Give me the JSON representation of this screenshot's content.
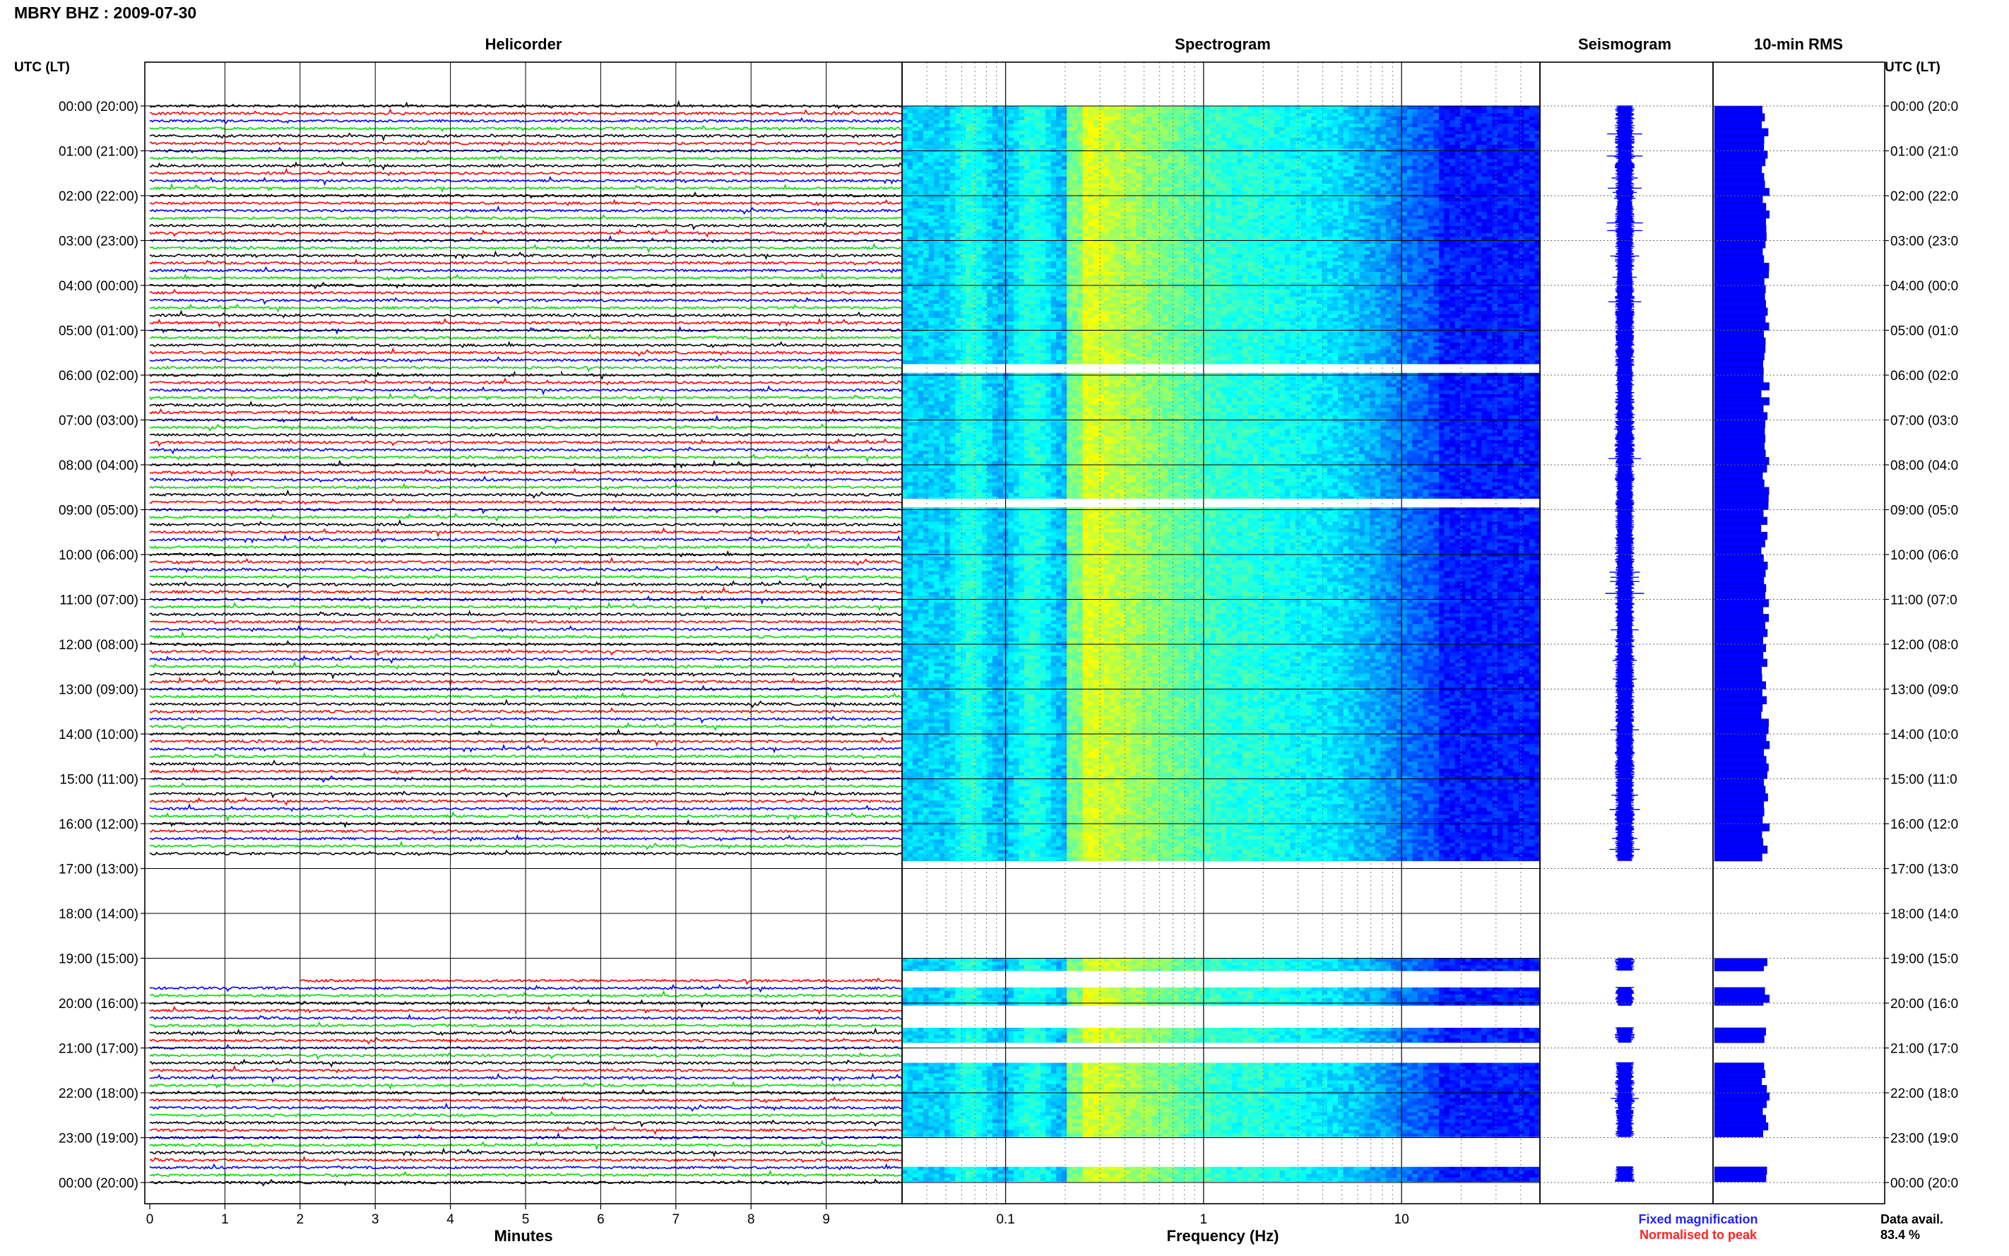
{
  "header": {
    "station_title": "MBRY BHZ : 2009-07-30",
    "utc_label": "UTC (LT)"
  },
  "panels": {
    "helicorder": "Helicorder",
    "spectrogram": "Spectrogram",
    "seismogram": "Seismogram",
    "rms": "10-min RMS"
  },
  "chart_data": {
    "type": "helicorder",
    "date": "2009-07-30",
    "hour_labels": [
      "00:00 (20:00)",
      "01:00 (21:00)",
      "02:00 (22:00)",
      "03:00 (23:00)",
      "04:00 (00:00)",
      "05:00 (01:00)",
      "06:00 (02:00)",
      "07:00 (03:00)",
      "08:00 (04:00)",
      "09:00 (05:00)",
      "10:00 (06:00)",
      "11:00 (07:00)",
      "12:00 (08:00)",
      "13:00 (09:00)",
      "14:00 (10:00)",
      "15:00 (11:00)",
      "16:00 (12:00)",
      "17:00 (13:00)",
      "18:00 (14:00)",
      "19:00 (15:00)",
      "20:00 (16:00)",
      "21:00 (17:00)",
      "22:00 (18:00)",
      "23:00 (19:00)",
      "00:00 (20:00)"
    ],
    "right_hour_labels": [
      "00:00 (20:0",
      "01:00 (21:0",
      "02:00 (22:0",
      "03:00 (23:0",
      "04:00 (00:0",
      "05:00 (01:0",
      "06:00 (02:0",
      "07:00 (03:0",
      "08:00 (04:0",
      "09:00 (05:0",
      "10:00 (06:0",
      "11:00 (07:0",
      "12:00 (08:0",
      "13:00 (09:0",
      "14:00 (10:0",
      "15:00 (11:0",
      "16:00 (12:0",
      "17:00 (13:0",
      "18:00 (14:0",
      "19:00 (15:0",
      "20:00 (16:0",
      "21:00 (17:0",
      "22:00 (18:0",
      "23:00 (19:0",
      "00:00 (20:0"
    ],
    "helicorder": {
      "xlabel": "Minutes",
      "x_ticks": [
        "0",
        "1",
        "2",
        "3",
        "4",
        "5",
        "6",
        "7",
        "8",
        "9"
      ],
      "xlim": [
        0,
        10
      ],
      "line_colors": [
        "#000000",
        "#ff0000",
        "#0000ff",
        "#00dd00"
      ],
      "traces_per_hour": 6,
      "minutes_per_trace": 10,
      "data_ranges": [
        {
          "start_minute": 0,
          "end_minute": 1010
        },
        {
          "start_minute": 1172,
          "end_minute": 1440
        }
      ]
    },
    "spectrogram": {
      "xlabel": "Frequency (Hz)",
      "x_scale": "log",
      "xlim": [
        0.03,
        50
      ],
      "x_ticks": [
        "0.1",
        "1",
        "10"
      ],
      "tick_values": [
        0.1,
        1,
        10
      ],
      "data_ranges_hours": [
        [
          0,
          5.75
        ],
        [
          5.95,
          8.75
        ],
        [
          8.95,
          16.83
        ],
        [
          19.0,
          19.28
        ],
        [
          19.65,
          20.05
        ],
        [
          20.55,
          20.88
        ],
        [
          21.33,
          22.98
        ],
        [
          23.65,
          23.98
        ]
      ]
    },
    "seismogram": {
      "data_ranges_hours": [
        [
          0,
          16.83
        ],
        [
          19.0,
          19.28
        ],
        [
          19.65,
          20.05
        ],
        [
          20.55,
          20.88
        ],
        [
          21.33,
          22.98
        ],
        [
          23.65,
          23.98
        ]
      ]
    },
    "rms": {
      "data_ranges_hours": [
        [
          0,
          16.83
        ],
        [
          19.0,
          19.28
        ],
        [
          19.65,
          20.05
        ],
        [
          20.55,
          20.88
        ],
        [
          21.33,
          22.98
        ],
        [
          23.65,
          23.98
        ]
      ]
    },
    "legend": {
      "fixed": "Fixed magnification",
      "normalised": "Normalised to peak"
    },
    "availability": {
      "label": "Data avail.",
      "value": "83.4 %"
    }
  }
}
